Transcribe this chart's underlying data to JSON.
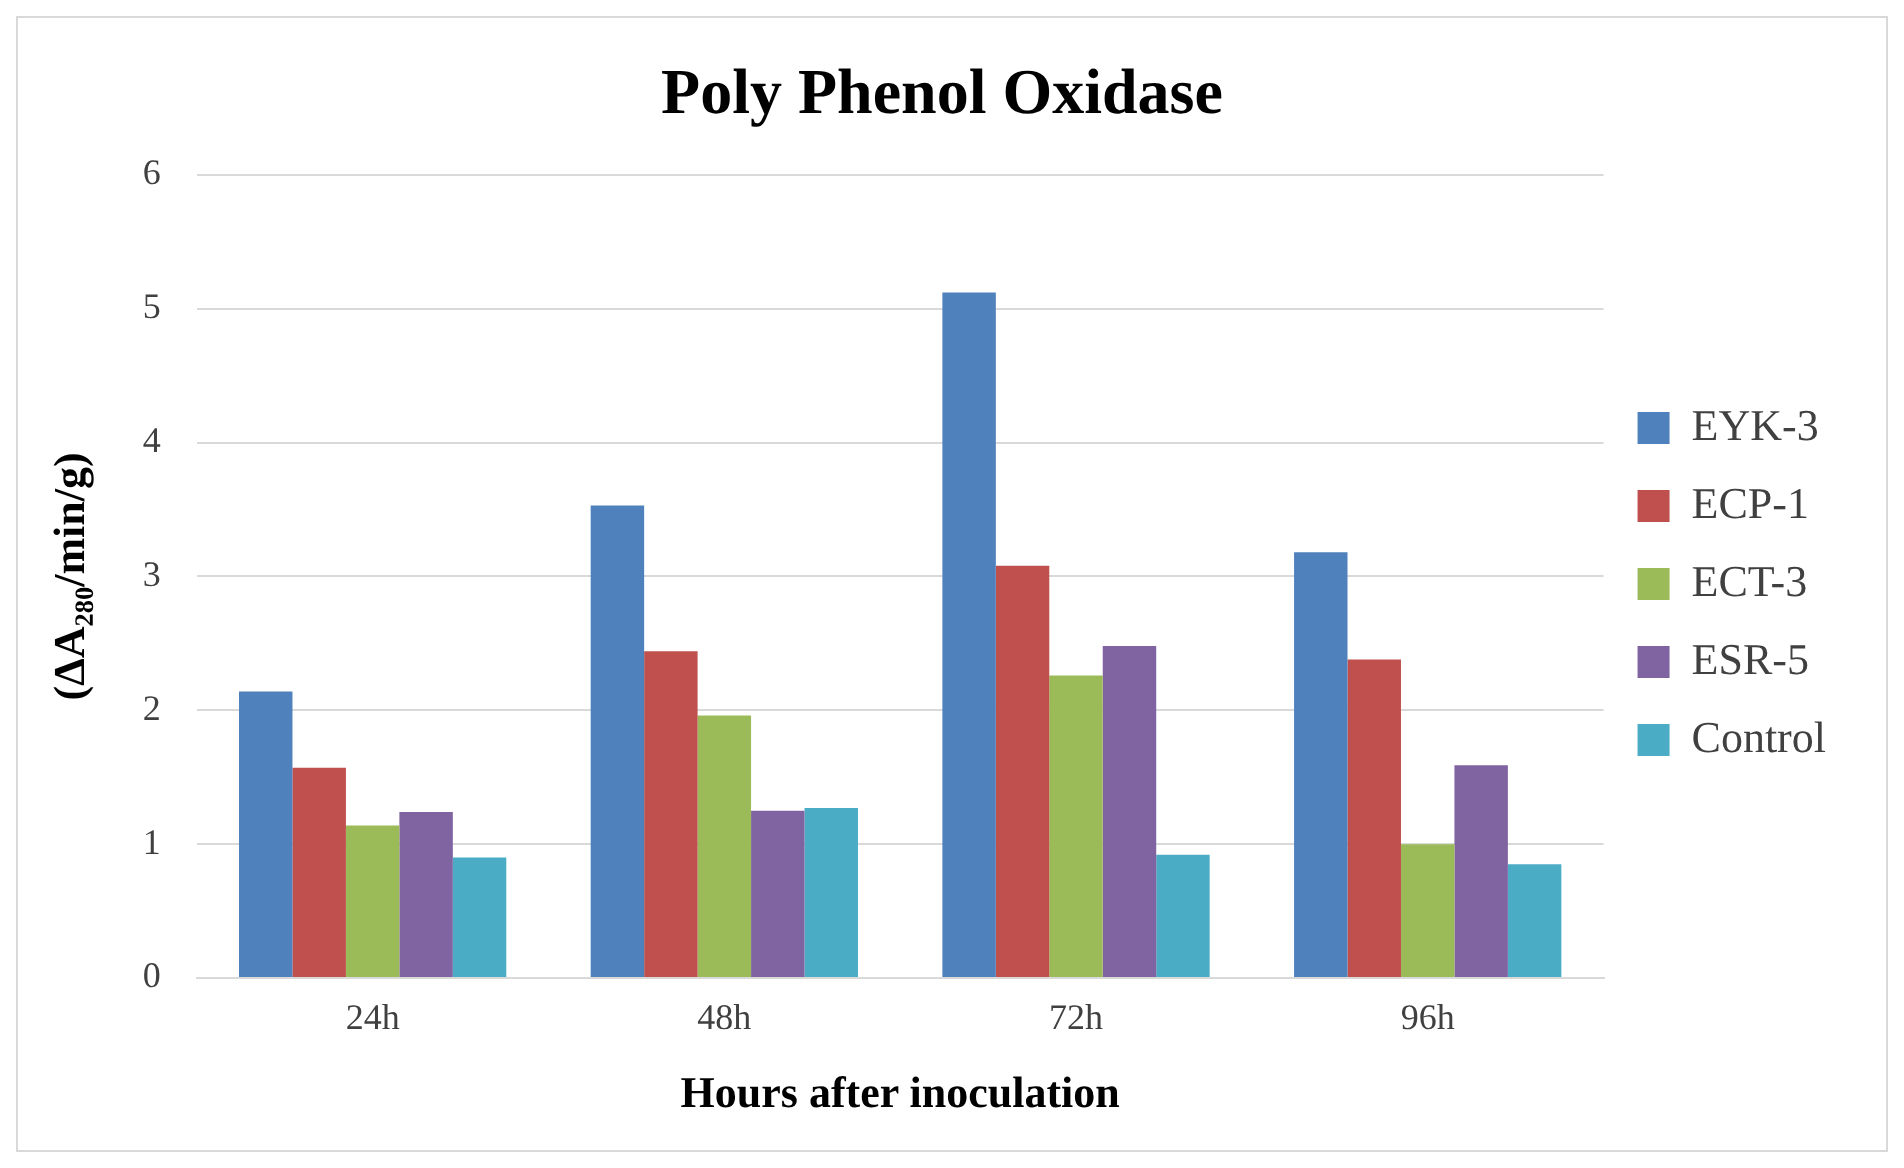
{
  "chart_data": {
    "type": "bar",
    "title": "Poly Phenol Oxidase",
    "xlabel": "Hours after inoculation",
    "ylabel": "(ΔA₂₈₀/min/g)",
    "categories": [
      "24h",
      "48h",
      "72h",
      "96h"
    ],
    "series": [
      {
        "name": "EYK-3",
        "color": "#4f81bd",
        "values": [
          2.14,
          3.53,
          5.12,
          3.18
        ]
      },
      {
        "name": "ECP-1",
        "color": "#c0504d",
        "values": [
          1.57,
          2.44,
          3.08,
          2.38
        ]
      },
      {
        "name": "ECT-3",
        "color": "#9bbb59",
        "values": [
          1.14,
          1.96,
          2.26,
          1.0
        ]
      },
      {
        "name": "ESR-5",
        "color": "#8064a2",
        "values": [
          1.24,
          1.25,
          2.48,
          1.59
        ]
      },
      {
        "name": "Control",
        "color": "#4bacc6",
        "values": [
          0.9,
          1.27,
          0.92,
          0.85
        ]
      }
    ],
    "ylim": [
      0,
      6
    ],
    "yticks": [
      0,
      1,
      2,
      3,
      4,
      5,
      6
    ],
    "grid": "y",
    "legend": "right"
  }
}
